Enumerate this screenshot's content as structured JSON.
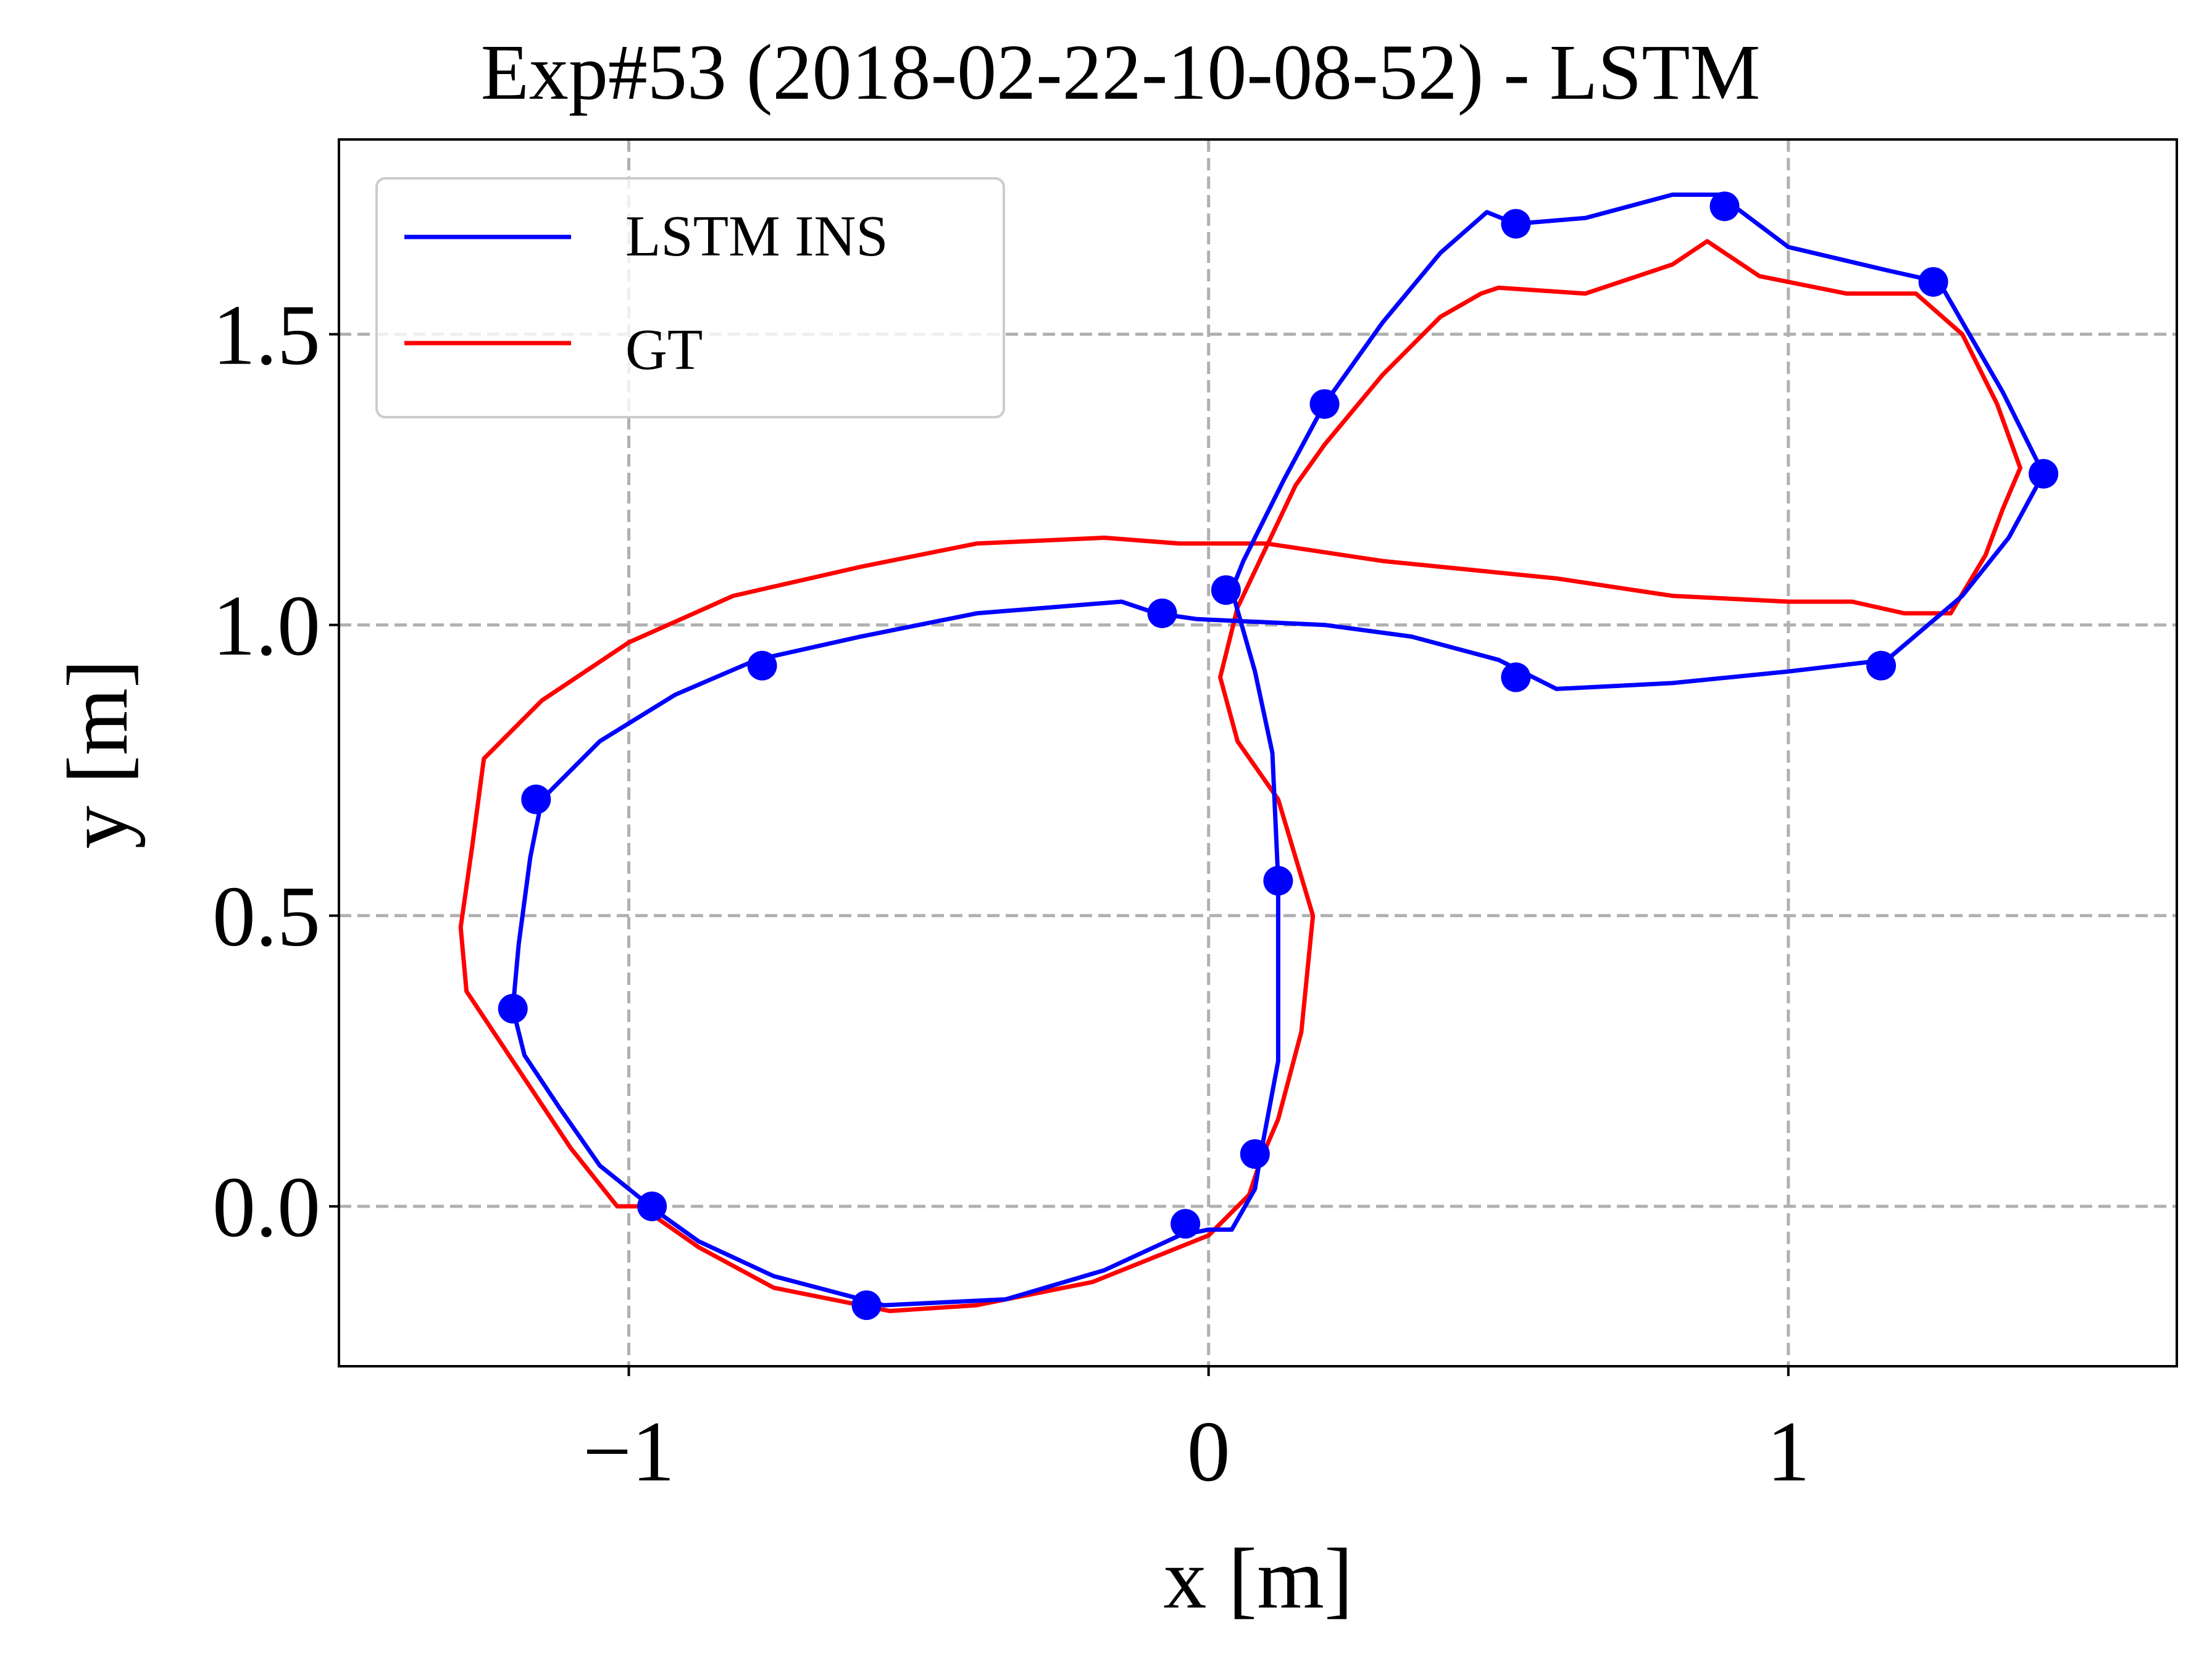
{
  "chart_data": {
    "type": "line",
    "title": "Exp#53 (2018-02-22-10-08-52) - LSTM",
    "xlabel": "x [m]",
    "ylabel": "y [m]",
    "xlim": [
      -1.5,
      1.67
    ],
    "ylim": [
      -0.275,
      1.835
    ],
    "x_ticks": [
      -1,
      0,
      1
    ],
    "x_tick_labels": [
      "−1",
      "0",
      "1"
    ],
    "y_ticks": [
      0.0,
      0.5,
      1.0,
      1.5
    ],
    "y_tick_labels": [
      "0.0",
      "0.5",
      "1.0",
      "1.5"
    ],
    "grid": true,
    "grid_style": "dashed",
    "legend_position": "top-left",
    "series": [
      {
        "name": "LSTM INS",
        "color": "#0000ff",
        "points": [
          [
            -0.56,
            -0.17
          ],
          [
            -0.75,
            -0.12
          ],
          [
            -0.88,
            -0.06
          ],
          [
            -0.95,
            -0.01
          ],
          [
            -1.05,
            0.07
          ],
          [
            -1.12,
            0.17
          ],
          [
            -1.18,
            0.26
          ],
          [
            -1.2,
            0.34
          ],
          [
            -1.19,
            0.45
          ],
          [
            -1.17,
            0.6
          ],
          [
            -1.15,
            0.7
          ],
          [
            -1.05,
            0.8
          ],
          [
            -0.92,
            0.88
          ],
          [
            -0.78,
            0.94
          ],
          [
            -0.6,
            0.98
          ],
          [
            -0.4,
            1.02
          ],
          [
            -0.15,
            1.04
          ],
          [
            -0.09,
            1.02
          ],
          [
            -0.02,
            1.01
          ],
          [
            0.2,
            1.0
          ],
          [
            0.35,
            0.98
          ],
          [
            0.5,
            0.94
          ],
          [
            0.6,
            0.89
          ],
          [
            0.8,
            0.9
          ],
          [
            1.0,
            0.92
          ],
          [
            1.17,
            0.94
          ],
          [
            1.3,
            1.05
          ],
          [
            1.38,
            1.15
          ],
          [
            1.44,
            1.26
          ],
          [
            1.37,
            1.4
          ],
          [
            1.26,
            1.59
          ],
          [
            1.17,
            1.61
          ],
          [
            1.0,
            1.65
          ],
          [
            0.88,
            1.74
          ],
          [
            0.8,
            1.74
          ],
          [
            0.65,
            1.7
          ],
          [
            0.53,
            1.69
          ],
          [
            0.48,
            1.71
          ],
          [
            0.4,
            1.64
          ],
          [
            0.3,
            1.52
          ],
          [
            0.2,
            1.38
          ],
          [
            0.13,
            1.25
          ],
          [
            0.06,
            1.11
          ],
          [
            0.04,
            1.06
          ],
          [
            0.08,
            0.92
          ],
          [
            0.11,
            0.78
          ],
          [
            0.12,
            0.56
          ],
          [
            0.12,
            0.4
          ],
          [
            0.12,
            0.25
          ],
          [
            0.09,
            0.09
          ],
          [
            0.08,
            0.03
          ],
          [
            0.04,
            -0.04
          ],
          [
            0.0,
            -0.04
          ],
          [
            -0.05,
            -0.05
          ],
          [
            -0.18,
            -0.11
          ],
          [
            -0.35,
            -0.16
          ],
          [
            -0.56,
            -0.17
          ]
        ],
        "markers": [
          [
            -0.59,
            -0.17
          ],
          [
            -0.96,
            0.0
          ],
          [
            -1.2,
            0.34
          ],
          [
            -1.16,
            0.7
          ],
          [
            -0.77,
            0.93
          ],
          [
            -0.08,
            1.02
          ],
          [
            0.03,
            1.06
          ],
          [
            0.2,
            1.38
          ],
          [
            0.53,
            1.69
          ],
          [
            0.89,
            1.72
          ],
          [
            1.25,
            1.59
          ],
          [
            1.44,
            1.26
          ],
          [
            1.16,
            0.93
          ],
          [
            0.53,
            0.91
          ],
          [
            0.12,
            0.56
          ],
          [
            0.08,
            0.09
          ],
          [
            -0.04,
            -0.03
          ]
        ]
      },
      {
        "name": "GT",
        "color": "#ff0000",
        "points": [
          [
            -0.55,
            -0.18
          ],
          [
            -0.75,
            -0.14
          ],
          [
            -0.88,
            -0.07
          ],
          [
            -0.98,
            0.0
          ],
          [
            -1.02,
            0.0
          ],
          [
            -1.1,
            0.1
          ],
          [
            -1.2,
            0.25
          ],
          [
            -1.28,
            0.37
          ],
          [
            -1.29,
            0.48
          ],
          [
            -1.27,
            0.62
          ],
          [
            -1.25,
            0.77
          ],
          [
            -1.15,
            0.87
          ],
          [
            -1.0,
            0.97
          ],
          [
            -0.82,
            1.05
          ],
          [
            -0.6,
            1.1
          ],
          [
            -0.4,
            1.14
          ],
          [
            -0.18,
            1.15
          ],
          [
            -0.05,
            1.14
          ],
          [
            0.1,
            1.14
          ],
          [
            0.3,
            1.11
          ],
          [
            0.6,
            1.08
          ],
          [
            0.8,
            1.05
          ],
          [
            1.0,
            1.04
          ],
          [
            1.11,
            1.04
          ],
          [
            1.2,
            1.02
          ],
          [
            1.28,
            1.02
          ],
          [
            1.34,
            1.12
          ],
          [
            1.37,
            1.2
          ],
          [
            1.4,
            1.27
          ],
          [
            1.36,
            1.38
          ],
          [
            1.3,
            1.5
          ],
          [
            1.22,
            1.57
          ],
          [
            1.1,
            1.57
          ],
          [
            0.95,
            1.6
          ],
          [
            0.86,
            1.66
          ],
          [
            0.8,
            1.62
          ],
          [
            0.65,
            1.57
          ],
          [
            0.5,
            1.58
          ],
          [
            0.47,
            1.57
          ],
          [
            0.4,
            1.53
          ],
          [
            0.3,
            1.43
          ],
          [
            0.2,
            1.31
          ],
          [
            0.15,
            1.24
          ],
          [
            0.05,
            1.03
          ],
          [
            0.02,
            0.91
          ],
          [
            0.05,
            0.8
          ],
          [
            0.12,
            0.7
          ],
          [
            0.18,
            0.5
          ],
          [
            0.16,
            0.3
          ],
          [
            0.12,
            0.15
          ],
          [
            0.09,
            0.08
          ],
          [
            0.07,
            0.02
          ],
          [
            0.0,
            -0.05
          ],
          [
            -0.05,
            -0.07
          ],
          [
            -0.2,
            -0.13
          ],
          [
            -0.4,
            -0.17
          ],
          [
            -0.55,
            -0.18
          ]
        ]
      }
    ]
  }
}
